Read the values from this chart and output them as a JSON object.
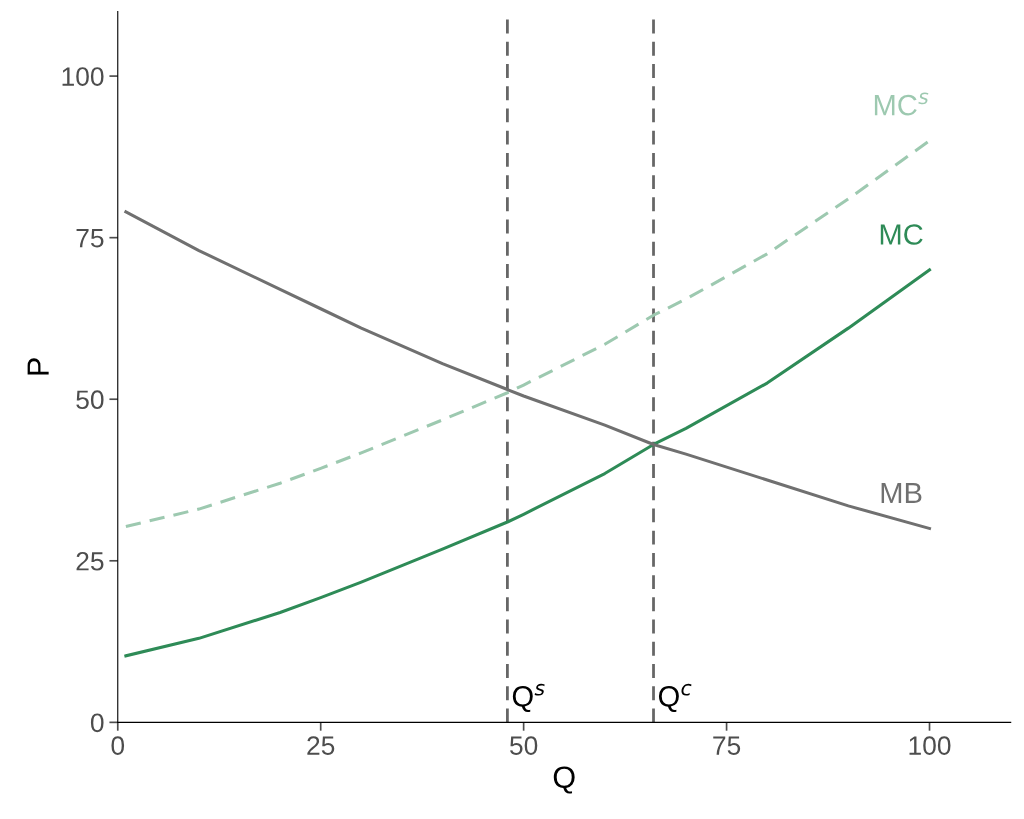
{
  "chart_data": {
    "type": "line",
    "xlabel": "Q",
    "ylabel": "P",
    "xlim": [
      0,
      110
    ],
    "ylim": [
      0,
      110
    ],
    "xticks": [
      0,
      25,
      50,
      75,
      100
    ],
    "yticks": [
      0,
      25,
      50,
      75,
      100
    ],
    "grid": false,
    "legend": false,
    "marker": "none",
    "series": [
      {
        "name": "MC$^{s}$",
        "color": "#9dc9b0",
        "line_style": "dashed",
        "x": [
          1,
          10,
          20,
          25,
          30,
          40,
          48,
          50,
          60,
          66,
          70,
          80,
          90,
          100
        ],
        "values": [
          30.3,
          33,
          37,
          39.3,
          41.7,
          46.8,
          51,
          52.2,
          58.5,
          63,
          65.5,
          72.5,
          81,
          90
        ]
      },
      {
        "name": "MC",
        "color": "#2e8b57",
        "line_style": "solid",
        "x": [
          1,
          10,
          20,
          25,
          30,
          40,
          48,
          50,
          60,
          66,
          70,
          80,
          90,
          100
        ],
        "values": [
          10.3,
          13,
          17,
          19.3,
          21.7,
          26.8,
          31,
          32.2,
          38.5,
          43,
          45.5,
          52.5,
          61,
          70
        ]
      },
      {
        "name": "MB",
        "color": "#707070",
        "line_style": "solid",
        "x": [
          1,
          10,
          20,
          25,
          30,
          40,
          48,
          50,
          60,
          66,
          70,
          80,
          90,
          100
        ],
        "values": [
          79,
          73,
          67,
          64,
          61,
          55.5,
          51.5,
          50.5,
          46,
          43,
          41.5,
          37.5,
          33.5,
          30
        ]
      }
    ],
    "ref_lines": [
      {
        "axis": "x",
        "value": 48,
        "label": "Q$^{s}$",
        "color": "#666666",
        "line_style": "dashed"
      },
      {
        "axis": "x",
        "value": 66,
        "label": "Q$^{c}$",
        "color": "#666666",
        "line_style": "dashed"
      }
    ]
  }
}
